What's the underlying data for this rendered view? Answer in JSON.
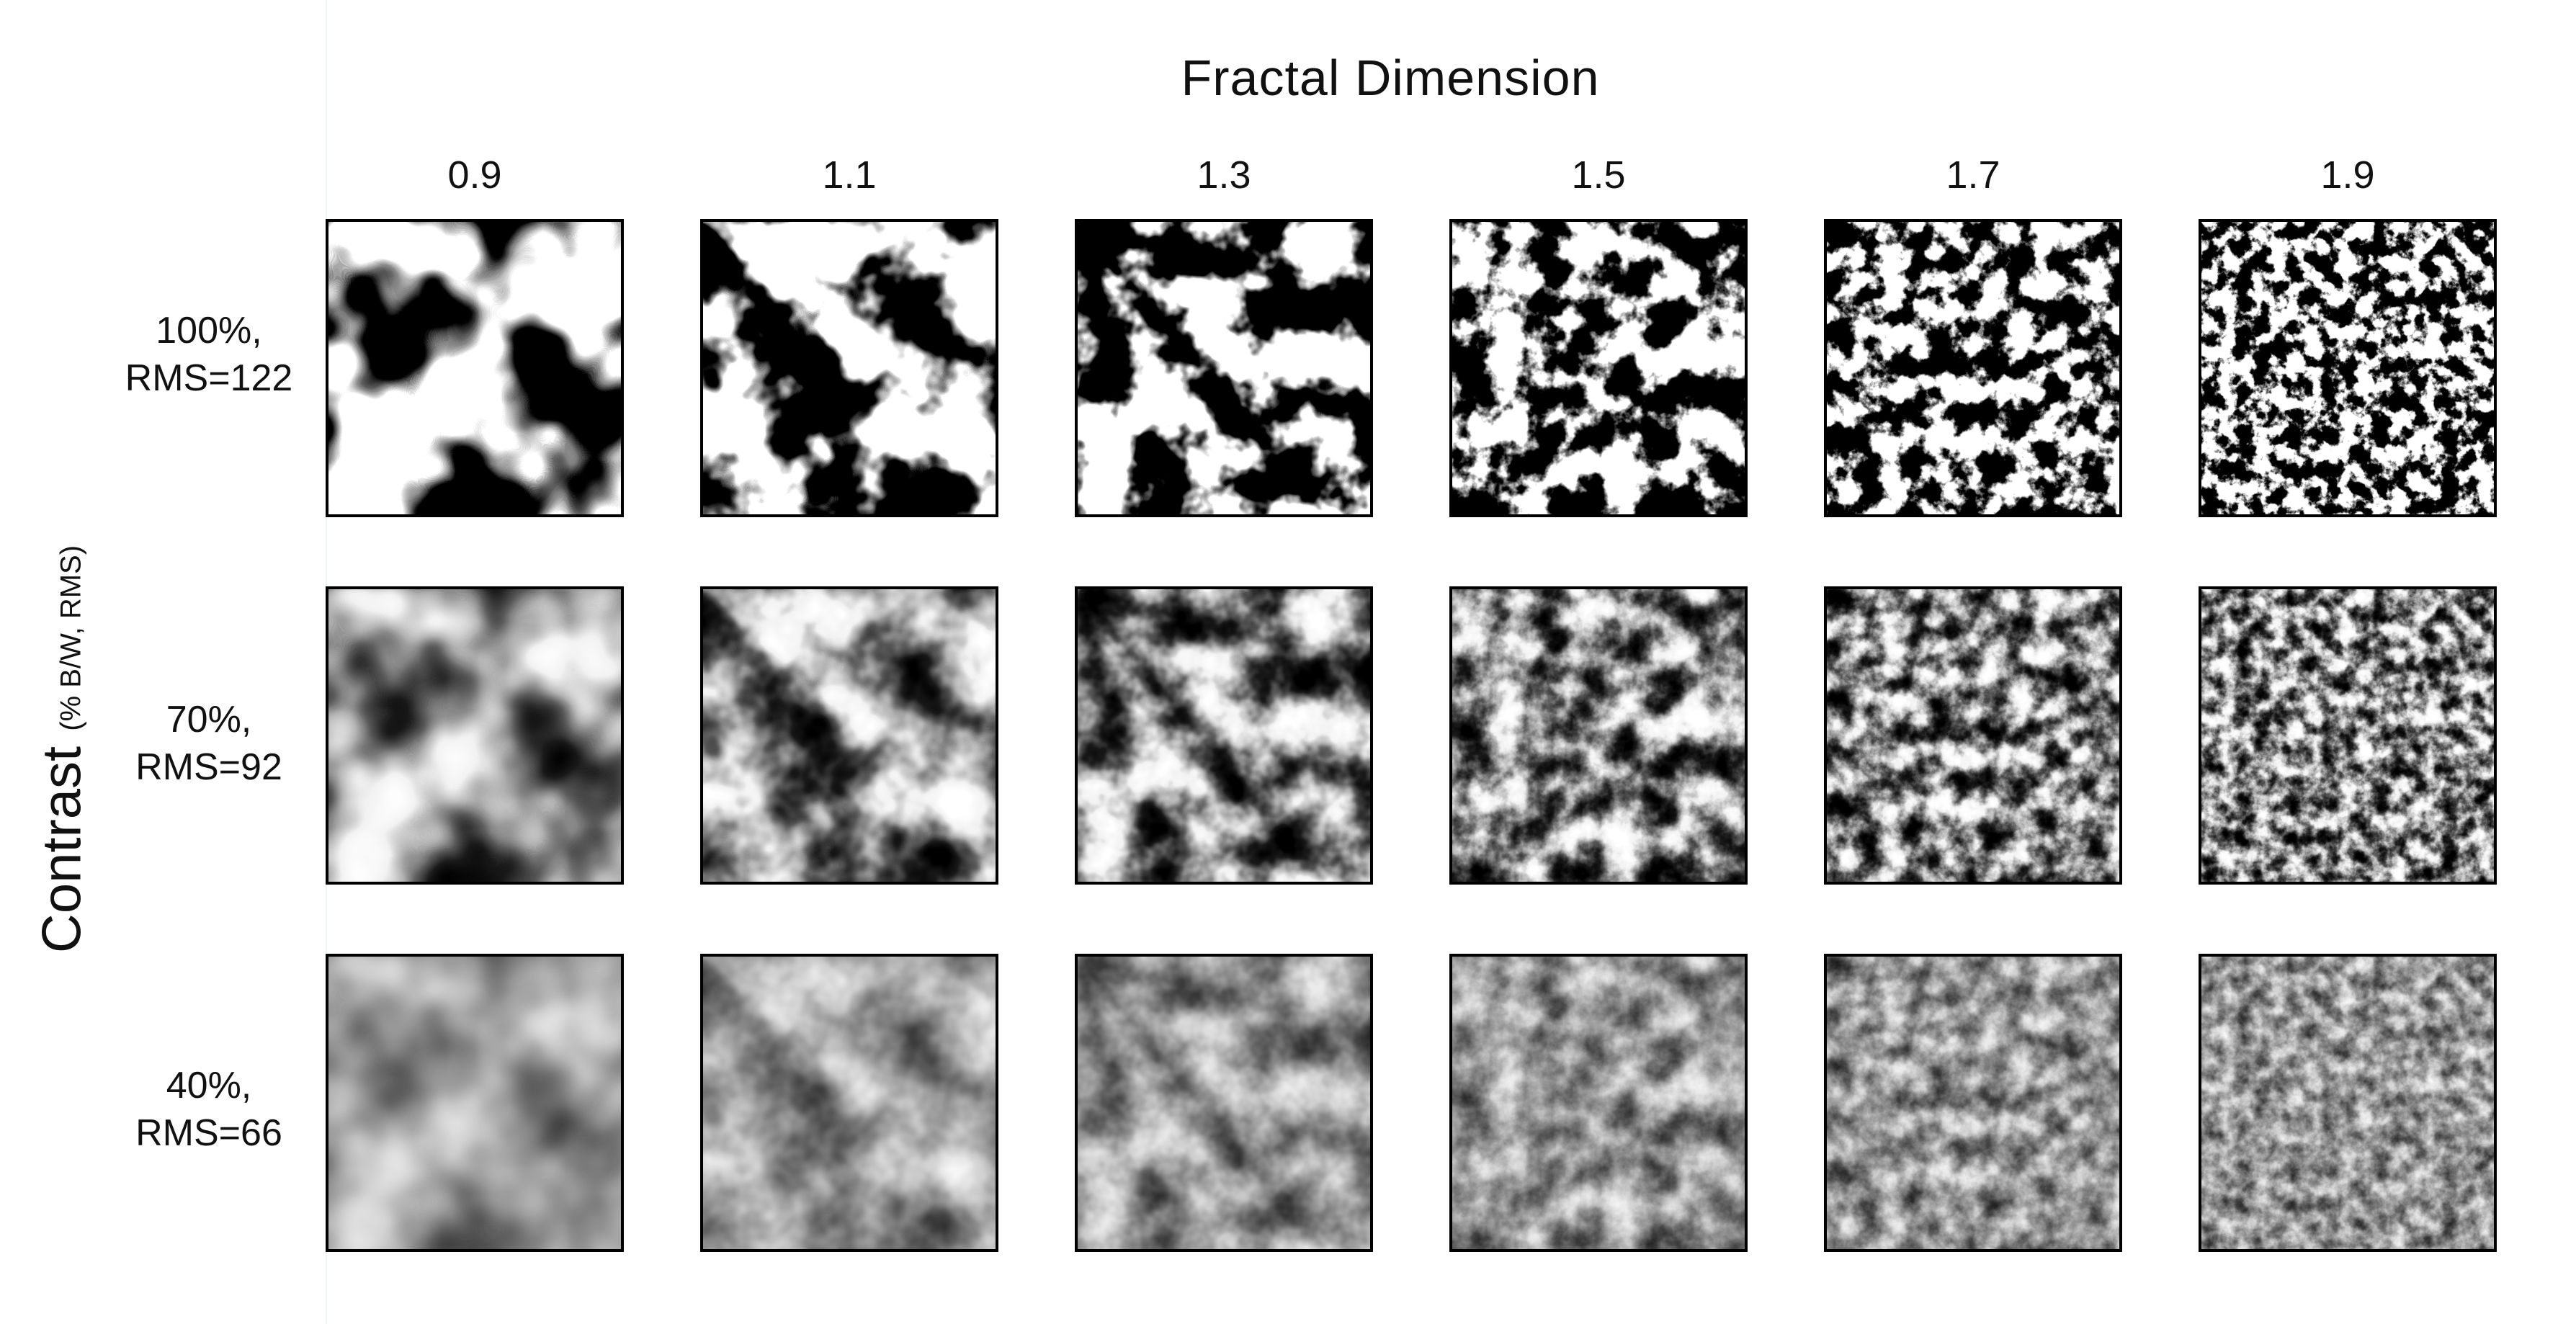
{
  "figure": {
    "column_axis_title": "Fractal Dimension",
    "row_axis_title": "Contrast",
    "row_axis_subtitle": "(% B/W, RMS)",
    "fractal_dimensions": [
      "0.9",
      "1.1",
      "1.3",
      "1.5",
      "1.7",
      "1.9"
    ],
    "contrast_levels": [
      {
        "line1": "100%,",
        "line2": "RMS=122",
        "value": 100
      },
      {
        "line1": "70%,",
        "line2": "RMS=92",
        "value": 70
      },
      {
        "line1": "40%,",
        "line2": "RMS=66",
        "value": 40
      }
    ],
    "colors": {
      "ink": "#000000",
      "paper": "#ffffff",
      "divider": "#eef5f6"
    }
  }
}
